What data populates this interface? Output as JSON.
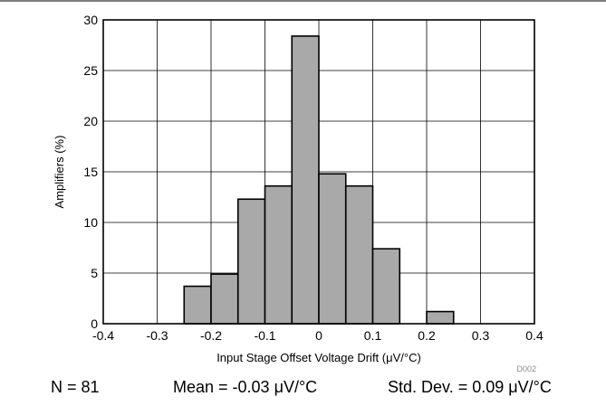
{
  "chart_data": {
    "type": "bar",
    "subtype": "histogram",
    "xlabel": "Input Stage Offset Voltage Drift (μV/°C)",
    "ylabel": "Amplifiers (%)",
    "xlim": [
      -0.4,
      0.4
    ],
    "ylim": [
      0,
      30
    ],
    "x_ticks": [
      "-0.4",
      "-0.3",
      "-0.2",
      "-0.1",
      "0",
      "0.1",
      "0.2",
      "0.3",
      "0.4"
    ],
    "y_ticks": [
      "0",
      "5",
      "10",
      "15",
      "20",
      "25",
      "30"
    ],
    "grid": true,
    "bin_width": 0.05,
    "bins": [
      {
        "start": -0.25,
        "end": -0.2,
        "value": 3.7
      },
      {
        "start": -0.2,
        "end": -0.15,
        "value": 4.9
      },
      {
        "start": -0.15,
        "end": -0.1,
        "value": 12.3
      },
      {
        "start": -0.1,
        "end": -0.05,
        "value": 13.6
      },
      {
        "start": -0.05,
        "end": 0.0,
        "value": 28.4
      },
      {
        "start": 0.0,
        "end": 0.05,
        "value": 14.8
      },
      {
        "start": 0.05,
        "end": 0.1,
        "value": 13.6
      },
      {
        "start": 0.1,
        "end": 0.15,
        "value": 7.4
      },
      {
        "start": 0.2,
        "end": 0.25,
        "value": 1.2
      }
    ],
    "bar_color": "#a9a9a9",
    "figure_id": "D002"
  },
  "stats": {
    "n": "N = 81",
    "mean": "Mean = -0.03 μV/°C",
    "stddev": "Std. Dev. = 0.09 μV/°C"
  }
}
